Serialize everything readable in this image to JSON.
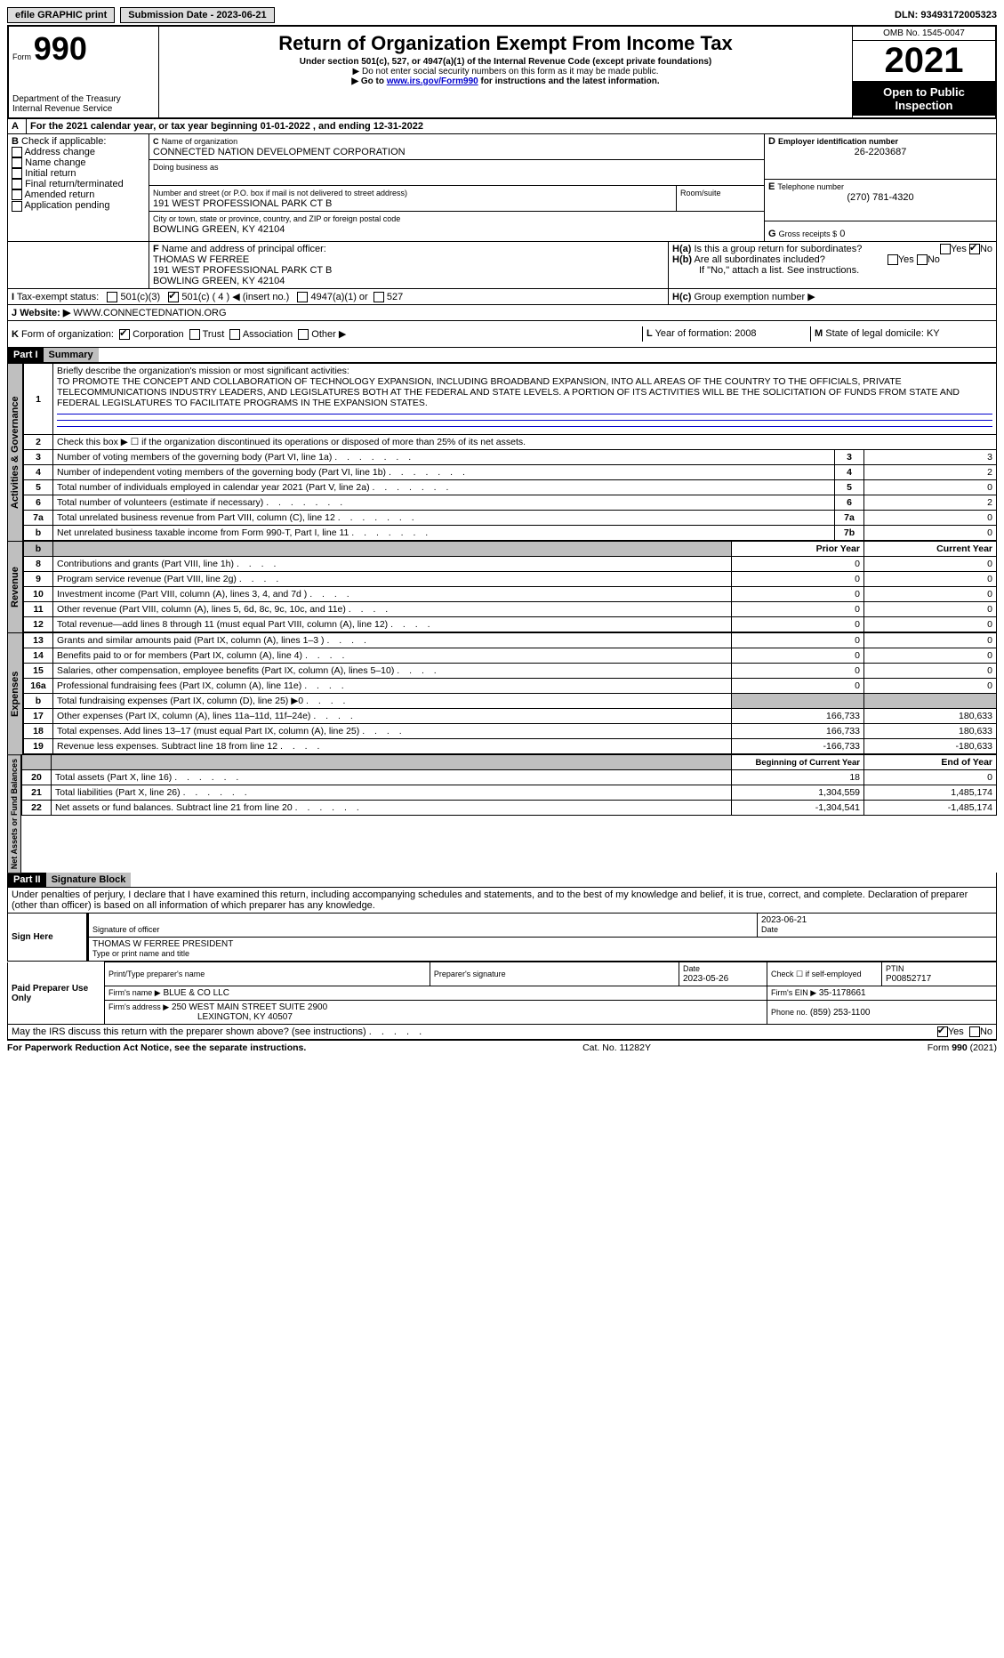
{
  "topbar": {
    "efile": "efile GRAPHIC print",
    "subdate_label": "Submission Date - 2023-06-21",
    "dln": "DLN: 93493172005323"
  },
  "header": {
    "form_small": "Form",
    "form_big": "990",
    "dept": "Department of the Treasury",
    "irs": "Internal Revenue Service",
    "title": "Return of Organization Exempt From Income Tax",
    "sub1": "Under section 501(c), 527, or 4947(a)(1) of the Internal Revenue Code (except private foundations)",
    "sub2": "▶ Do not enter social security numbers on this form as it may be made public.",
    "sub3a": "▶ Go to ",
    "sub3_link": "www.irs.gov/Form990",
    "sub3b": " for instructions and the latest information.",
    "omb": "OMB No. 1545-0047",
    "year": "2021",
    "open1": "Open to Public",
    "open2": "Inspection"
  },
  "A": {
    "text": "For the 2021 calendar year, or tax year beginning 01-01-2022   , and ending 12-31-2022",
    "label": "A"
  },
  "B": {
    "label": "B",
    "caption": "Check if applicable:",
    "opts": [
      "Address change",
      "Name change",
      "Initial return",
      "Final return/terminated",
      "Amended return",
      "Application pending"
    ]
  },
  "C": {
    "label": "C",
    "name_label": "Name of organization",
    "name": "CONNECTED NATION DEVELOPMENT CORPORATION",
    "dba_label": "Doing business as",
    "street_label": "Number and street (or P.O. box if mail is not delivered to street address)",
    "street": "191 WEST PROFESSIONAL PARK CT B",
    "room_label": "Room/suite",
    "city_label": "City or town, state or province, country, and ZIP or foreign postal code",
    "city": "BOWLING GREEN, KY  42104"
  },
  "D": {
    "label": "D",
    "caption": "Employer identification number",
    "value": "26-2203687"
  },
  "E": {
    "label": "E",
    "caption": "Telephone number",
    "value": "(270) 781-4320"
  },
  "G": {
    "label": "G",
    "caption": "Gross receipts $",
    "value": "0"
  },
  "F": {
    "label": "F",
    "caption": "Name and address of principal officer:",
    "name": "THOMAS W FERREE",
    "street": "191 WEST PROFESSIONAL PARK CT B",
    "city": "BOWLING GREEN, KY  42104"
  },
  "H": {
    "a_label": "H(a)",
    "a_text": "Is this a group return for subordinates?",
    "a_yes": "Yes",
    "a_no": "No",
    "b_label": "H(b)",
    "b_text": "Are all subordinates included?",
    "b_note": "If \"No,\" attach a list. See instructions.",
    "c_label": "H(c)",
    "c_text": "Group exemption number ▶"
  },
  "I": {
    "label": "I",
    "caption": "Tax-exempt status:",
    "opt1": "501(c)(3)",
    "opt2": "501(c) ( 4 ) ◀ (insert no.)",
    "opt3": "4947(a)(1) or",
    "opt4": "527"
  },
  "J": {
    "label": "J",
    "caption": "Website: ▶",
    "value": "WWW.CONNECTEDNATION.ORG"
  },
  "K": {
    "label": "K",
    "caption": "Form of organization:",
    "opts": [
      "Corporation",
      "Trust",
      "Association",
      "Other ▶"
    ]
  },
  "L": {
    "label": "L",
    "caption": "Year of formation:",
    "value": "2008"
  },
  "M": {
    "label": "M",
    "caption": "State of legal domicile:",
    "value": "KY"
  },
  "part1": {
    "bar": "Part I",
    "title": "Summary"
  },
  "vtabs": {
    "gov": "Activities & Governance",
    "rev": "Revenue",
    "exp": "Expenses",
    "net": "Net Assets or Fund Balances"
  },
  "summary": {
    "q1": "Briefly describe the organization's mission or most significant activities:",
    "q1val": "TO PROMOTE THE CONCEPT AND COLLABORATION OF TECHNOLOGY EXPANSION, INCLUDING BROADBAND EXPANSION, INTO ALL AREAS OF THE COUNTRY TO THE OFFICIALS, PRIVATE TELECOMMUNICATIONS INDUSTRY LEADERS, AND LEGISLATURES BOTH AT THE FEDERAL AND STATE LEVELS. A PORTION OF ITS ACTIVITIES WILL BE THE SOLICITATION OF FUNDS FROM STATE AND FEDERAL LEGISLATURES TO FACILITATE PROGRAMS IN THE EXPANSION STATES.",
    "q2": "Check this box ▶ ☐  if the organization discontinued its operations or disposed of more than 25% of its net assets.",
    "rows_gov": [
      {
        "n": "3",
        "t": "Number of voting members of the governing body (Part VI, line 1a)",
        "c": "3",
        "v": "3"
      },
      {
        "n": "4",
        "t": "Number of independent voting members of the governing body (Part VI, line 1b)",
        "c": "4",
        "v": "2"
      },
      {
        "n": "5",
        "t": "Total number of individuals employed in calendar year 2021 (Part V, line 2a)",
        "c": "5",
        "v": "0"
      },
      {
        "n": "6",
        "t": "Total number of volunteers (estimate if necessary)",
        "c": "6",
        "v": "2"
      },
      {
        "n": "7a",
        "t": "Total unrelated business revenue from Part VIII, column (C), line 12",
        "c": "7a",
        "v": "0"
      },
      {
        "n": "b",
        "t": "Net unrelated business taxable income from Form 990-T, Part I, line 11",
        "c": "7b",
        "v": "0"
      }
    ],
    "col_prior": "Prior Year",
    "col_curr": "Current Year",
    "col_beg": "Beginning of Current Year",
    "col_end": "End of Year",
    "rows_rev": [
      {
        "n": "8",
        "t": "Contributions and grants (Part VIII, line 1h)",
        "p": "0",
        "c": "0"
      },
      {
        "n": "9",
        "t": "Program service revenue (Part VIII, line 2g)",
        "p": "0",
        "c": "0"
      },
      {
        "n": "10",
        "t": "Investment income (Part VIII, column (A), lines 3, 4, and 7d )",
        "p": "0",
        "c": "0"
      },
      {
        "n": "11",
        "t": "Other revenue (Part VIII, column (A), lines 5, 6d, 8c, 9c, 10c, and 11e)",
        "p": "0",
        "c": "0"
      },
      {
        "n": "12",
        "t": "Total revenue—add lines 8 through 11 (must equal Part VIII, column (A), line 12)",
        "p": "0",
        "c": "0"
      }
    ],
    "rows_exp": [
      {
        "n": "13",
        "t": "Grants and similar amounts paid (Part IX, column (A), lines 1–3 )",
        "p": "0",
        "c": "0"
      },
      {
        "n": "14",
        "t": "Benefits paid to or for members (Part IX, column (A), line 4)",
        "p": "0",
        "c": "0"
      },
      {
        "n": "15",
        "t": "Salaries, other compensation, employee benefits (Part IX, column (A), lines 5–10)",
        "p": "0",
        "c": "0"
      },
      {
        "n": "16a",
        "t": "Professional fundraising fees (Part IX, column (A), line 11e)",
        "p": "0",
        "c": "0"
      },
      {
        "n": "b",
        "t": "Total fundraising expenses (Part IX, column (D), line 25) ▶0",
        "p": "",
        "c": "",
        "shade": true
      },
      {
        "n": "17",
        "t": "Other expenses (Part IX, column (A), lines 11a–11d, 11f–24e)",
        "p": "166,733",
        "c": "180,633"
      },
      {
        "n": "18",
        "t": "Total expenses. Add lines 13–17 (must equal Part IX, column (A), line 25)",
        "p": "166,733",
        "c": "180,633"
      },
      {
        "n": "19",
        "t": "Revenue less expenses. Subtract line 18 from line 12",
        "p": "-166,733",
        "c": "-180,633"
      }
    ],
    "rows_net": [
      {
        "n": "20",
        "t": "Total assets (Part X, line 16)",
        "p": "18",
        "c": "0"
      },
      {
        "n": "21",
        "t": "Total liabilities (Part X, line 26)",
        "p": "1,304,559",
        "c": "1,485,174"
      },
      {
        "n": "22",
        "t": "Net assets or fund balances. Subtract line 21 from line 20",
        "p": "-1,304,541",
        "c": "-1,485,174"
      }
    ]
  },
  "part2": {
    "bar": "Part II",
    "title": "Signature Block"
  },
  "sig": {
    "perjury": "Under penalties of perjury, I declare that I have examined this return, including accompanying schedules and statements, and to the best of my knowledge and belief, it is true, correct, and complete. Declaration of preparer (other than officer) is based on all information of which preparer has any knowledge.",
    "sign_here": "Sign Here",
    "sig_officer": "Signature of officer",
    "sig_date": "Date",
    "sig_dateval": "2023-06-21",
    "typed": "THOMAS W FERREE PRESIDENT",
    "typed_label": "Type or print name and title",
    "paid": "Paid Preparer Use Only",
    "pname_label": "Print/Type preparer's name",
    "psig_label": "Preparer's signature",
    "pdate_label": "Date",
    "pdate": "2023-05-26",
    "pself_label": "Check ☐ if self-employed",
    "ptin_label": "PTIN",
    "ptin": "P00852717",
    "firm_label": "Firm's name    ▶",
    "firm": "BLUE & CO LLC",
    "fein_label": "Firm's EIN ▶",
    "fein": "35-1178661",
    "faddr_label": "Firm's address ▶",
    "faddr1": "250 WEST MAIN STREET SUITE 2900",
    "faddr2": "LEXINGTON, KY  40507",
    "fphone_label": "Phone no.",
    "fphone": "(859) 253-1100",
    "discuss": "May the IRS discuss this return with the preparer shown above? (see instructions)",
    "yes": "Yes",
    "no": "No"
  },
  "footer": {
    "left": "For Paperwork Reduction Act Notice, see the separate instructions.",
    "mid": "Cat. No. 11282Y",
    "right": "Form 990 (2021)"
  }
}
